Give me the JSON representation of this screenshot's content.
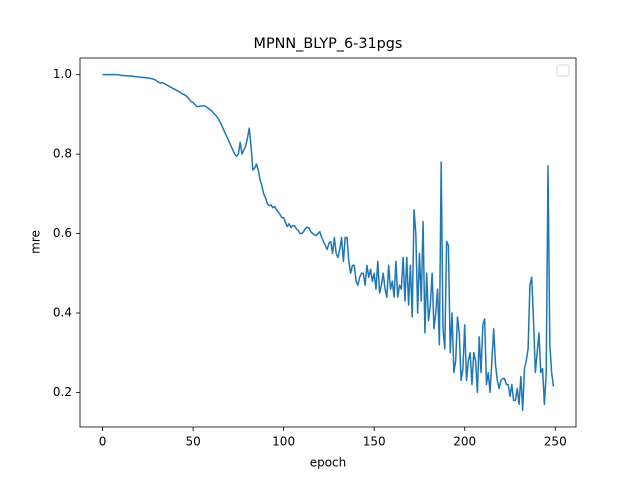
{
  "chart_data": {
    "type": "line",
    "title": "MPNN_BLYP_6-31pgs",
    "x_label": "epoch",
    "y_label": "mre",
    "x": [
      0,
      1,
      2,
      3,
      4,
      5,
      6,
      7,
      8,
      9,
      10,
      11,
      12,
      13,
      14,
      15,
      16,
      17,
      18,
      19,
      20,
      21,
      22,
      23,
      24,
      25,
      26,
      27,
      28,
      29,
      30,
      31,
      32,
      33,
      34,
      35,
      36,
      37,
      38,
      39,
      40,
      41,
      42,
      43,
      44,
      45,
      46,
      47,
      48,
      49,
      50,
      51,
      52,
      53,
      54,
      55,
      56,
      57,
      58,
      59,
      60,
      61,
      62,
      63,
      64,
      65,
      66,
      67,
      68,
      69,
      70,
      71,
      72,
      73,
      74,
      75,
      76,
      77,
      78,
      79,
      80,
      81,
      82,
      83,
      84,
      85,
      86,
      87,
      88,
      89,
      90,
      91,
      92,
      93,
      94,
      95,
      96,
      97,
      98,
      99,
      100,
      101,
      102,
      103,
      104,
      105,
      106,
      107,
      108,
      109,
      110,
      111,
      112,
      113,
      114,
      115,
      116,
      117,
      118,
      119,
      120,
      121,
      122,
      123,
      124,
      125,
      126,
      127,
      128,
      129,
      130,
      131,
      132,
      133,
      134,
      135,
      136,
      137,
      138,
      139,
      140,
      141,
      142,
      143,
      144,
      145,
      146,
      147,
      148,
      149,
      150,
      151,
      152,
      153,
      154,
      155,
      156,
      157,
      158,
      159,
      160,
      161,
      162,
      163,
      164,
      165,
      166,
      167,
      168,
      169,
      170,
      171,
      172,
      173,
      174,
      175,
      176,
      177,
      178,
      179,
      180,
      181,
      182,
      183,
      184,
      185,
      186,
      187,
      188,
      189,
      190,
      191,
      192,
      193,
      194,
      195,
      196,
      197,
      198,
      199,
      200,
      201,
      202,
      203,
      204,
      205,
      206,
      207,
      208,
      209,
      210,
      211,
      212,
      213,
      214,
      215,
      216,
      217,
      218,
      219,
      220,
      221,
      222,
      223,
      224,
      225,
      226,
      227,
      228,
      229,
      230,
      231,
      232,
      233,
      234,
      235,
      236,
      237,
      238,
      239,
      240,
      241,
      242,
      243,
      244,
      245,
      246,
      247,
      248,
      249
    ],
    "series": [
      {
        "color": "#1f77b4",
        "values": [
          1.0,
          1.0,
          1.0,
          1.0,
          1.0,
          1.0,
          1.0,
          1.0,
          1.0,
          1.0,
          0.998,
          0.998,
          0.998,
          0.997,
          0.997,
          0.997,
          0.996,
          0.996,
          0.995,
          0.995,
          0.994,
          0.994,
          0.993,
          0.993,
          0.992,
          0.992,
          0.991,
          0.99,
          0.989,
          0.987,
          0.984,
          0.981,
          0.979,
          0.98,
          0.978,
          0.975,
          0.973,
          0.97,
          0.968,
          0.965,
          0.963,
          0.96,
          0.958,
          0.955,
          0.952,
          0.95,
          0.947,
          0.943,
          0.938,
          0.932,
          0.93,
          0.925,
          0.92,
          0.92,
          0.921,
          0.921,
          0.922,
          0.92,
          0.917,
          0.913,
          0.91,
          0.905,
          0.9,
          0.895,
          0.888,
          0.88,
          0.87,
          0.86,
          0.85,
          0.84,
          0.83,
          0.82,
          0.81,
          0.8,
          0.795,
          0.8,
          0.83,
          0.8,
          0.81,
          0.82,
          0.84,
          0.865,
          0.82,
          0.76,
          0.765,
          0.775,
          0.76,
          0.735,
          0.72,
          0.7,
          0.69,
          0.675,
          0.67,
          0.672,
          0.665,
          0.668,
          0.66,
          0.655,
          0.648,
          0.64,
          0.64,
          0.628,
          0.618,
          0.625,
          0.615,
          0.62,
          0.62,
          0.612,
          0.608,
          0.6,
          0.6,
          0.605,
          0.612,
          0.616,
          0.614,
          0.605,
          0.6,
          0.597,
          0.595,
          0.6,
          0.605,
          0.59,
          0.58,
          0.57,
          0.56,
          0.575,
          0.58,
          0.55,
          0.59,
          0.55,
          0.54,
          0.56,
          0.59,
          0.53,
          0.59,
          0.59,
          0.53,
          0.5,
          0.52,
          0.52,
          0.48,
          0.47,
          0.49,
          0.5,
          0.5,
          0.47,
          0.52,
          0.49,
          0.51,
          0.48,
          0.5,
          0.46,
          0.53,
          0.45,
          0.47,
          0.5,
          0.46,
          0.44,
          0.52,
          0.46,
          0.48,
          0.44,
          0.53,
          0.44,
          0.47,
          0.46,
          0.54,
          0.43,
          0.54,
          0.42,
          0.52,
          0.39,
          0.66,
          0.6,
          0.4,
          0.55,
          0.43,
          0.63,
          0.35,
          0.5,
          0.38,
          0.42,
          0.5,
          0.36,
          0.4,
          0.46,
          0.32,
          0.78,
          0.36,
          0.31,
          0.58,
          0.57,
          0.3,
          0.4,
          0.25,
          0.28,
          0.39,
          0.35,
          0.23,
          0.26,
          0.37,
          0.23,
          0.28,
          0.3,
          0.22,
          0.3,
          0.28,
          0.2,
          0.34,
          0.25,
          0.37,
          0.385,
          0.22,
          0.25,
          0.2,
          0.28,
          0.36,
          0.27,
          0.23,
          0.21,
          0.23,
          0.235,
          0.235,
          0.22,
          0.22,
          0.19,
          0.22,
          0.18,
          0.18,
          0.21,
          0.17,
          0.24,
          0.155,
          0.26,
          0.28,
          0.31,
          0.47,
          0.49,
          0.38,
          0.25,
          0.3,
          0.35,
          0.25,
          0.26,
          0.17,
          0.25,
          0.77,
          0.32,
          0.25,
          0.215
        ]
      }
    ],
    "xlim": [
      -12.45,
      261.45
    ],
    "ylim": [
      0.113,
      1.042
    ],
    "xticks": [
      0,
      50,
      100,
      150,
      200,
      250
    ],
    "yticks": [
      0.2,
      0.4,
      0.6,
      0.8,
      {
        "value": 1.0,
        "label": "1.0"
      }
    ],
    "grid": false,
    "legend": "upper right"
  }
}
